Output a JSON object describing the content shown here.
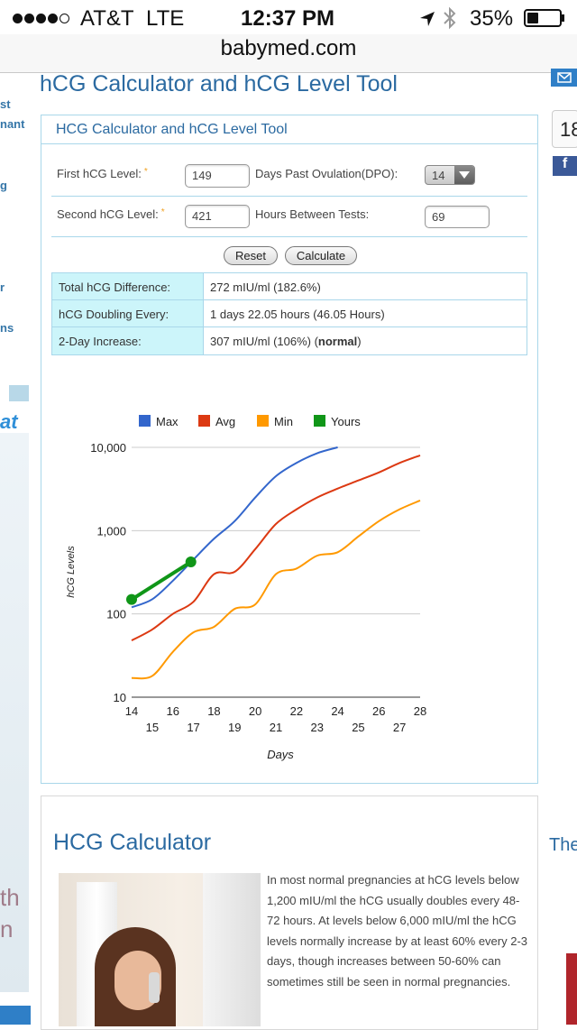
{
  "status_bar": {
    "carrier": "AT&T",
    "network": "LTE",
    "time": "12:37 PM",
    "battery": "35%",
    "signal_filled": 4,
    "signal_total": 5,
    "battery_level": 0.35
  },
  "browser": {
    "url": "babymed.com"
  },
  "sidebar_left": {
    "items": [
      "st",
      "nant",
      "g",
      "r",
      "ns"
    ],
    "promo_text": "at",
    "promo_text2": "th",
    "promo_text3": "n"
  },
  "page": {
    "title": "hCG Calculator and hCG Level Tool"
  },
  "calculator": {
    "title": "HCG Calculator and hCG Level Tool",
    "first_label": "First hCG Level:",
    "first_value": "149",
    "second_label": "Second hCG Level:",
    "second_value": "421",
    "required_mark": "*",
    "dpo_label": "Days Past Ovulation(DPO):",
    "dpo_value": "14",
    "hours_label": "Hours Between Tests:",
    "hours_value": "69",
    "reset_label": "Reset",
    "calculate_label": "Calculate"
  },
  "results": [
    {
      "key": "Total hCG Difference:",
      "value": "272 mIU/ml (182.6%)"
    },
    {
      "key": "hCG Doubling Every:",
      "value": "1 days 22.05 hours (46.05 Hours)"
    },
    {
      "key": "2-Day Increase:",
      "value": "307 mIU/ml (106%) (",
      "value_bold": "normal",
      "value_end": ")"
    }
  ],
  "chart_data": {
    "type": "line",
    "xlabel": "Days",
    "ylabel": "hCG Levels",
    "yscale": "log",
    "ylim": [
      10,
      10000
    ],
    "yticks": [
      "10",
      "100",
      "1,000",
      "10,000"
    ],
    "ytick_values": [
      10,
      100,
      1000,
      10000
    ],
    "xlim": [
      14,
      28
    ],
    "xticks_top": [
      "14",
      "16",
      "18",
      "20",
      "22",
      "24",
      "26",
      "28"
    ],
    "xticks_bottom": [
      "15",
      "17",
      "19",
      "21",
      "23",
      "25",
      "27"
    ],
    "legend_position": "top",
    "series": [
      {
        "name": "Max",
        "color": "#3366cc",
        "x": [
          14,
          15,
          16,
          17,
          18,
          19,
          20,
          21,
          22,
          23,
          24
        ],
        "y": [
          120,
          150,
          250,
          450,
          800,
          1300,
          2500,
          4500,
          6500,
          8500,
          10000
        ]
      },
      {
        "name": "Avg",
        "color": "#dc3912",
        "x": [
          14,
          15,
          16,
          17,
          18,
          19,
          20,
          21,
          22,
          23,
          24,
          25,
          26,
          27,
          28
        ],
        "y": [
          48,
          65,
          100,
          140,
          300,
          320,
          600,
          1200,
          1800,
          2500,
          3200,
          4000,
          5000,
          6500,
          8000
        ]
      },
      {
        "name": "Min",
        "color": "#ff9900",
        "x": [
          14,
          15,
          16,
          17,
          18,
          19,
          20,
          21,
          22,
          23,
          24,
          25,
          26,
          27,
          28
        ],
        "y": [
          17,
          18,
          35,
          60,
          70,
          115,
          130,
          300,
          350,
          500,
          550,
          850,
          1300,
          1800,
          2300
        ]
      },
      {
        "name": "Yours",
        "color": "#109618",
        "x": [
          14,
          16.875
        ],
        "y": [
          149,
          421
        ],
        "markers": true
      }
    ]
  },
  "article": {
    "heading": "HCG Calculator",
    "paragraph": "In most normal pregnancies at hCG levels below 1,200 mIU/ml the hCG usually doubles every 48-72 hours. At levels below 6,000 mIU/ml the hCG levels normally increase by at least 60% every 2-3 days, though increases between 50-60% can sometimes still be seen in normal pregnancies."
  },
  "sidebar_right": {
    "counter": "18",
    "fb": "f",
    "heading": "The"
  },
  "colors": {
    "accent": "#2b6aa1",
    "border": "#a9d7ea",
    "result_cell": "#ccf5fa"
  }
}
